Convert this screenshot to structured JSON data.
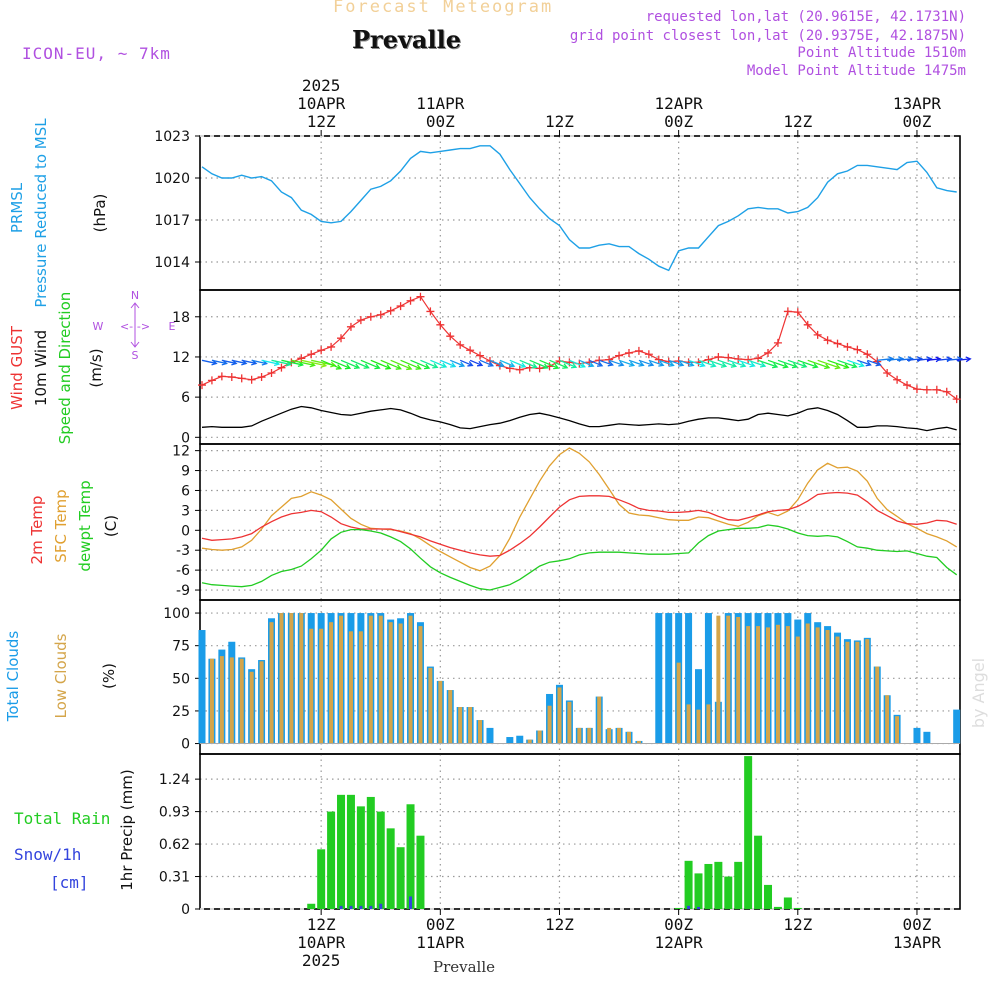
{
  "header": {
    "title": "Forecast Meteogram",
    "location": "Prevalle",
    "model": "ICON-EU, ~ 7km",
    "requested": "requested lon,lat (20.9615E, 42.1731N)",
    "grid_point": "grid point closest lon,lat (20.9375E, 42.1875N)",
    "point_alt": "Point Altitude 1510m",
    "model_alt": "Model Point Altitude 1475m",
    "footer_location": "Prevalle",
    "credit": "by Angel"
  },
  "colors": {
    "pressure": "#1ea0e6",
    "gust": "#ee3333",
    "wind10m": "#000000",
    "temp2m": "#ee3333",
    "sfctemp": "#e0a030",
    "dewpt": "#22cc22",
    "total_cloud": "#1a9ce8",
    "low_cloud": "#d4a54a",
    "rain": "#22cc22",
    "snow": "#3344dd",
    "side_label_purple": "#b050e0"
  },
  "time_axis": {
    "top_labels": [
      {
        "t": 12,
        "lines": [
          "2025",
          "10APR",
          "12Z"
        ]
      },
      {
        "t": 24,
        "lines": [
          "11APR",
          "00Z"
        ]
      },
      {
        "t": 36,
        "lines": [
          "12Z"
        ]
      },
      {
        "t": 48,
        "lines": [
          "12APR",
          "00Z"
        ]
      },
      {
        "t": 60,
        "lines": [
          "12Z"
        ]
      },
      {
        "t": 72,
        "lines": [
          "13APR",
          "00Z"
        ]
      }
    ],
    "bottom_labels": [
      {
        "t": 12,
        "lines": [
          "12Z",
          "10APR",
          "2025"
        ]
      },
      {
        "t": 24,
        "lines": [
          "00Z",
          "11APR"
        ]
      },
      {
        "t": 36,
        "lines": [
          "12Z"
        ]
      },
      {
        "t": 48,
        "lines": [
          "00Z",
          "12APR"
        ]
      },
      {
        "t": 60,
        "lines": [
          "12Z"
        ]
      },
      {
        "t": 72,
        "lines": [
          "00Z",
          "13APR"
        ]
      }
    ]
  },
  "chart_data": [
    {
      "type": "line",
      "panel": "pressure",
      "ylabel_left": [
        "PRMSL",
        "Pressure Reduced to MSL"
      ],
      "ylabel_unit": "(hPa)",
      "yticks": [
        1014,
        1017,
        1020,
        1023
      ],
      "ylim": [
        1012,
        1023
      ],
      "grid": true,
      "series": [
        {
          "name": "PRMSL",
          "x": [
            0,
            1,
            2,
            3,
            4,
            5,
            6,
            7,
            8,
            9,
            10,
            11,
            12,
            13,
            14,
            15,
            16,
            17,
            18,
            19,
            20,
            21,
            22,
            23,
            24,
            25,
            26,
            27,
            28,
            29,
            30,
            31,
            32,
            33,
            34,
            35,
            36,
            37,
            38,
            39,
            40,
            41,
            42,
            43,
            44,
            45,
            46,
            47,
            48,
            49,
            50,
            51,
            52,
            53,
            54,
            55,
            56,
            57,
            58,
            59,
            60,
            61,
            62,
            63,
            64,
            65,
            66,
            67,
            68,
            69,
            70,
            71,
            72,
            73,
            74,
            75,
            76
          ],
          "values": [
            1020.8,
            1020.3,
            1020.0,
            1020.0,
            1020.2,
            1020.0,
            1020.1,
            1019.8,
            1019.0,
            1018.6,
            1017.7,
            1017.4,
            1016.9,
            1016.8,
            1016.9,
            1017.6,
            1018.4,
            1019.2,
            1019.4,
            1019.8,
            1020.5,
            1021.4,
            1021.9,
            1021.8,
            1021.9,
            1022.0,
            1022.1,
            1022.1,
            1022.3,
            1022.3,
            1021.7,
            1020.6,
            1019.6,
            1018.6,
            1017.8,
            1017.1,
            1016.6,
            1015.6,
            1015.0,
            1015.0,
            1015.2,
            1015.3,
            1015.1,
            1015.1,
            1014.6,
            1014.2,
            1013.7,
            1013.4,
            1014.8,
            1015.0,
            1015.0,
            1015.8,
            1016.6,
            1016.9,
            1017.3,
            1017.8,
            1017.9,
            1017.8,
            1017.8,
            1017.5,
            1017.6,
            1017.9,
            1018.6,
            1019.7,
            1020.3,
            1020.5,
            1020.9,
            1020.9,
            1020.8,
            1020.7,
            1020.6,
            1021.1,
            1021.2,
            1020.4,
            1019.3,
            1019.1,
            1019.0
          ]
        }
      ]
    },
    {
      "type": "line",
      "panel": "wind",
      "ylabel_left": [
        "Wind GUST",
        "10m Wind",
        "Speed and Direction"
      ],
      "ylabel_unit": "(m/s)",
      "compass_labels": {
        "n": "N",
        "s": "S",
        "w": "W",
        "e": "E",
        "arrows": "<-|->"
      },
      "yticks": [
        0,
        6,
        12,
        18
      ],
      "ylim": [
        -1,
        22
      ],
      "grid": true,
      "series": [
        {
          "name": "Wind GUST",
          "values": [
            7.8,
            8.5,
            9.1,
            9.0,
            8.8,
            8.6,
            9.0,
            9.6,
            10.4,
            11.2,
            11.8,
            12.4,
            13.0,
            13.5,
            14.8,
            16.5,
            17.5,
            18.0,
            18.3,
            18.9,
            19.6,
            20.4,
            21.0,
            18.8,
            16.8,
            15.1,
            13.8,
            13.0,
            12.2,
            11.4,
            10.7,
            10.3,
            10.1,
            10.4,
            10.3,
            10.6,
            11.4,
            11.2,
            11.0,
            11.2,
            11.5,
            11.6,
            12.2,
            12.6,
            12.9,
            12.4,
            11.6,
            11.3,
            11.4,
            11.2,
            11.2,
            11.6,
            12.0,
            11.9,
            11.7,
            11.6,
            11.8,
            12.6,
            14.1,
            18.8,
            18.7,
            16.8,
            15.3,
            14.5,
            14.0,
            13.5,
            13.1,
            12.4,
            11.3,
            9.6,
            8.6,
            7.8,
            7.2,
            7.1,
            7.1,
            6.8,
            5.7
          ]
        },
        {
          "name": "10m Wind",
          "values": [
            1.5,
            1.6,
            1.5,
            1.5,
            1.5,
            1.7,
            2.4,
            3.0,
            3.6,
            4.2,
            4.6,
            4.4,
            4.0,
            3.7,
            3.4,
            3.3,
            3.6,
            3.9,
            4.1,
            4.3,
            4.1,
            3.6,
            3.0,
            2.6,
            2.3,
            1.9,
            1.4,
            1.3,
            1.6,
            1.9,
            2.1,
            2.5,
            3.0,
            3.4,
            3.6,
            3.3,
            2.9,
            2.5,
            2.0,
            1.6,
            1.6,
            1.8,
            2.0,
            1.9,
            1.8,
            1.9,
            2.0,
            1.9,
            2.0,
            2.4,
            2.7,
            2.9,
            2.9,
            2.7,
            2.5,
            2.7,
            3.4,
            3.6,
            3.4,
            3.2,
            3.6,
            4.2,
            4.4,
            4.0,
            3.4,
            2.5,
            1.5,
            1.5,
            1.7,
            1.7,
            1.6,
            1.4,
            1.3,
            1.0,
            1.3,
            1.5,
            1.1
          ]
        }
      ]
    },
    {
      "type": "line",
      "panel": "temperature",
      "ylabel_left": [
        "2m Temp",
        "SFC Temp",
        "dewpt Temp"
      ],
      "ylabel_unit": "(C)",
      "yticks": [
        -9,
        -6,
        -3,
        0,
        3,
        6,
        9,
        12
      ],
      "ylim": [
        -10.5,
        13
      ],
      "grid": true,
      "series": [
        {
          "name": "2m Temp",
          "values": [
            -1.2,
            -1.5,
            -1.4,
            -1.3,
            -1.0,
            -0.5,
            0.5,
            1.3,
            2.0,
            2.5,
            2.7,
            3.0,
            2.8,
            2.0,
            1.0,
            0.5,
            0.2,
            0.2,
            0.2,
            0.2,
            -0.2,
            -0.6,
            -1.0,
            -1.6,
            -2.1,
            -2.6,
            -3.0,
            -3.4,
            -3.7,
            -3.9,
            -3.8,
            -3.0,
            -2.0,
            -0.9,
            0.5,
            2.0,
            3.5,
            4.6,
            5.1,
            5.2,
            5.2,
            5.1,
            4.6,
            4.0,
            3.3,
            3.0,
            2.9,
            2.7,
            2.7,
            2.8,
            3.0,
            2.7,
            2.1,
            1.6,
            1.5,
            1.9,
            2.3,
            2.8,
            3.0,
            3.1,
            3.6,
            4.4,
            5.4,
            5.6,
            5.7,
            5.6,
            5.3,
            4.3,
            3.0,
            2.2,
            1.4,
            1.0,
            0.9,
            1.1,
            1.5,
            1.4,
            0.9
          ]
        },
        {
          "name": "SFC Temp",
          "values": [
            -2.7,
            -2.9,
            -3.0,
            -2.9,
            -2.5,
            -1.5,
            0.2,
            2.2,
            3.5,
            4.8,
            5.1,
            5.8,
            5.3,
            4.6,
            3.2,
            1.8,
            0.9,
            0.3,
            0.2,
            0.1,
            -0.1,
            -0.5,
            -1.3,
            -2.3,
            -3.2,
            -4.0,
            -4.8,
            -5.6,
            -6.1,
            -5.4,
            -3.8,
            -1.2,
            2.0,
            4.7,
            7.4,
            9.7,
            11.4,
            12.4,
            11.6,
            10.3,
            8.4,
            6.2,
            3.9,
            2.6,
            2.3,
            2.2,
            1.9,
            1.6,
            1.5,
            1.5,
            2.0,
            1.9,
            1.4,
            0.9,
            0.6,
            1.2,
            2.2,
            2.7,
            2.2,
            2.9,
            4.6,
            7.1,
            9.1,
            10.1,
            9.4,
            9.5,
            8.9,
            7.4,
            4.8,
            3.1,
            2.1,
            1.0,
            0.3,
            -0.5,
            -1.0,
            -1.6,
            -2.5
          ]
        },
        {
          "name": "dewpt Temp",
          "values": [
            -7.9,
            -8.2,
            -8.3,
            -8.4,
            -8.5,
            -8.3,
            -7.7,
            -6.8,
            -6.2,
            -5.9,
            -5.4,
            -4.3,
            -3.0,
            -1.3,
            -0.3,
            0.1,
            0.1,
            -0.1,
            -0.4,
            -1.0,
            -1.7,
            -2.8,
            -4.2,
            -5.5,
            -6.4,
            -7.1,
            -7.7,
            -8.3,
            -8.8,
            -9.0,
            -8.6,
            -8.2,
            -7.4,
            -6.4,
            -5.4,
            -4.8,
            -4.6,
            -4.3,
            -3.7,
            -3.4,
            -3.3,
            -3.3,
            -3.3,
            -3.4,
            -3.5,
            -3.6,
            -3.6,
            -3.6,
            -3.5,
            -3.4,
            -1.9,
            -0.8,
            -0.1,
            0.1,
            0.3,
            0.3,
            0.4,
            0.8,
            0.6,
            0.2,
            -0.4,
            -0.8,
            -0.9,
            -0.8,
            -1.0,
            -1.7,
            -2.5,
            -2.7,
            -3.0,
            -3.1,
            -3.2,
            -3.1,
            -3.5,
            -3.9,
            -4.1,
            -5.6,
            -6.7
          ]
        }
      ]
    },
    {
      "type": "bar",
      "panel": "clouds",
      "ylabel_left": [
        "Total Clouds",
        "Low Clouds"
      ],
      "ylabel_unit": "(%)",
      "yticks": [
        0,
        25,
        50,
        75,
        100
      ],
      "ylim": [
        -8,
        110
      ],
      "grid": true,
      "series": [
        {
          "name": "Total Clouds",
          "values": [
            87,
            65,
            72,
            78,
            66,
            57,
            64,
            96,
            100,
            100,
            100,
            100,
            100,
            100,
            100,
            100,
            100,
            100,
            100,
            95,
            96,
            100,
            93,
            59,
            48,
            41,
            28,
            28,
            18,
            12,
            0,
            5,
            6,
            3,
            10,
            38,
            45,
            33,
            12,
            12,
            36,
            11,
            12,
            9,
            2,
            0,
            100,
            100,
            100,
            100,
            57,
            100,
            32,
            100,
            100,
            100,
            100,
            100,
            100,
            100,
            95,
            100,
            93,
            90,
            85,
            80,
            79,
            81,
            59,
            37,
            22,
            0,
            12,
            9,
            0,
            0,
            26
          ]
        },
        {
          "name": "Low Clouds",
          "values": [
            0,
            65,
            67,
            66,
            65,
            55,
            63,
            93,
            100,
            100,
            100,
            88,
            88,
            93,
            98,
            86,
            86,
            98,
            98,
            93,
            92,
            98,
            90,
            58,
            48,
            41,
            28,
            28,
            18,
            0,
            0,
            0,
            0,
            3,
            10,
            29,
            43,
            32,
            12,
            12,
            36,
            12,
            12,
            9,
            2,
            0,
            0,
            0,
            62,
            30,
            26,
            30,
            98,
            98,
            97,
            90,
            90,
            89,
            91,
            90,
            82,
            92,
            89,
            87,
            82,
            78,
            78,
            80,
            59,
            37,
            21,
            0,
            0,
            0,
            0,
            0,
            0
          ]
        }
      ]
    },
    {
      "type": "bar",
      "panel": "precip",
      "ylabel_left": [
        "Total  Rain",
        "Snow/1h",
        "[cm]"
      ],
      "ylabel_unit": "1hr Precip (mm)",
      "yticks": [
        0,
        0.31,
        0.62,
        0.93,
        1.24
      ],
      "ylim": [
        0,
        1.48
      ],
      "grid": true,
      "series": [
        {
          "name": "Total Rain",
          "values": [
            0,
            0,
            0,
            0,
            0,
            0,
            0,
            0,
            0,
            0,
            0,
            0.05,
            0.57,
            0.93,
            1.09,
            1.09,
            0.98,
            1.07,
            0.93,
            0.77,
            0.59,
            1.0,
            0.7,
            0,
            0,
            0,
            0,
            0,
            0,
            0,
            0,
            0,
            0,
            0,
            0,
            0,
            0,
            0,
            0,
            0,
            0,
            0,
            0,
            0,
            0,
            0,
            0,
            0,
            0.01,
            0.46,
            0.34,
            0.43,
            0.45,
            0.31,
            0.45,
            1.46,
            0.7,
            0.23,
            0.02,
            0.11,
            0.01,
            0,
            0,
            0,
            0,
            0,
            0,
            0,
            0,
            0,
            0,
            0,
            0,
            0,
            0,
            0,
            0
          ]
        },
        {
          "name": "Snow/1h",
          "values": [
            0,
            0,
            0,
            0,
            0,
            0,
            0,
            0,
            0,
            0,
            0,
            0,
            0,
            0,
            0.03,
            0.03,
            0.03,
            0.03,
            0.05,
            0,
            0,
            0.12,
            0,
            0,
            0,
            0,
            0,
            0,
            0,
            0,
            0,
            0,
            0,
            0,
            0,
            0,
            0,
            0,
            0,
            0,
            0,
            0,
            0,
            0,
            0,
            0,
            0,
            0,
            0,
            0.03,
            0.02,
            0,
            0,
            0,
            0,
            0,
            0,
            0,
            0,
            0,
            0,
            0,
            0,
            0,
            0,
            0,
            0,
            0,
            0,
            0,
            0,
            0,
            0,
            0,
            0,
            0,
            0
          ]
        }
      ]
    }
  ]
}
